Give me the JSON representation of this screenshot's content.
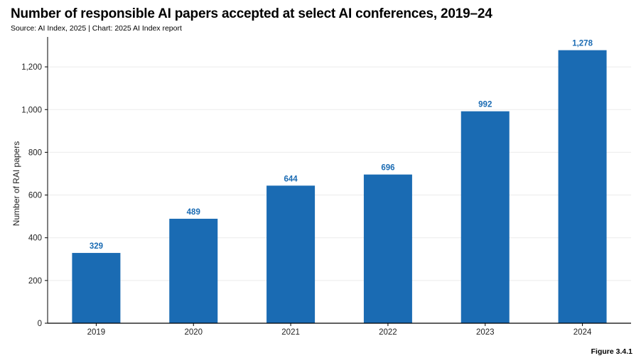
{
  "title": "Number of responsible AI papers accepted at select AI conferences, 2019–24",
  "subtitle": "Source: AI Index, 2025 | Chart: 2025 AI Index report",
  "figure_label": "Figure 3.4.1",
  "colors": {
    "bar": "#1a6bb3",
    "label": "#1a6bb3",
    "grid": "#ebebeb",
    "axis": "#000000"
  },
  "chart_data": {
    "type": "bar",
    "categories": [
      "2019",
      "2020",
      "2021",
      "2022",
      "2023",
      "2024"
    ],
    "values": [
      329,
      489,
      644,
      696,
      992,
      1278
    ],
    "value_labels": [
      "329",
      "489",
      "644",
      "696",
      "992",
      "1,278"
    ],
    "title": "Number of responsible AI papers accepted at select AI conferences, 2019–24",
    "xlabel": "",
    "ylabel": "Number of RAI papers",
    "ylim": [
      0,
      1340
    ],
    "yticks": [
      0,
      200,
      400,
      600,
      800,
      1000,
      1200
    ],
    "ytick_labels": [
      "0",
      "200",
      "400",
      "600",
      "800",
      "1,000",
      "1,200"
    ],
    "grid": true,
    "legend": "none"
  }
}
